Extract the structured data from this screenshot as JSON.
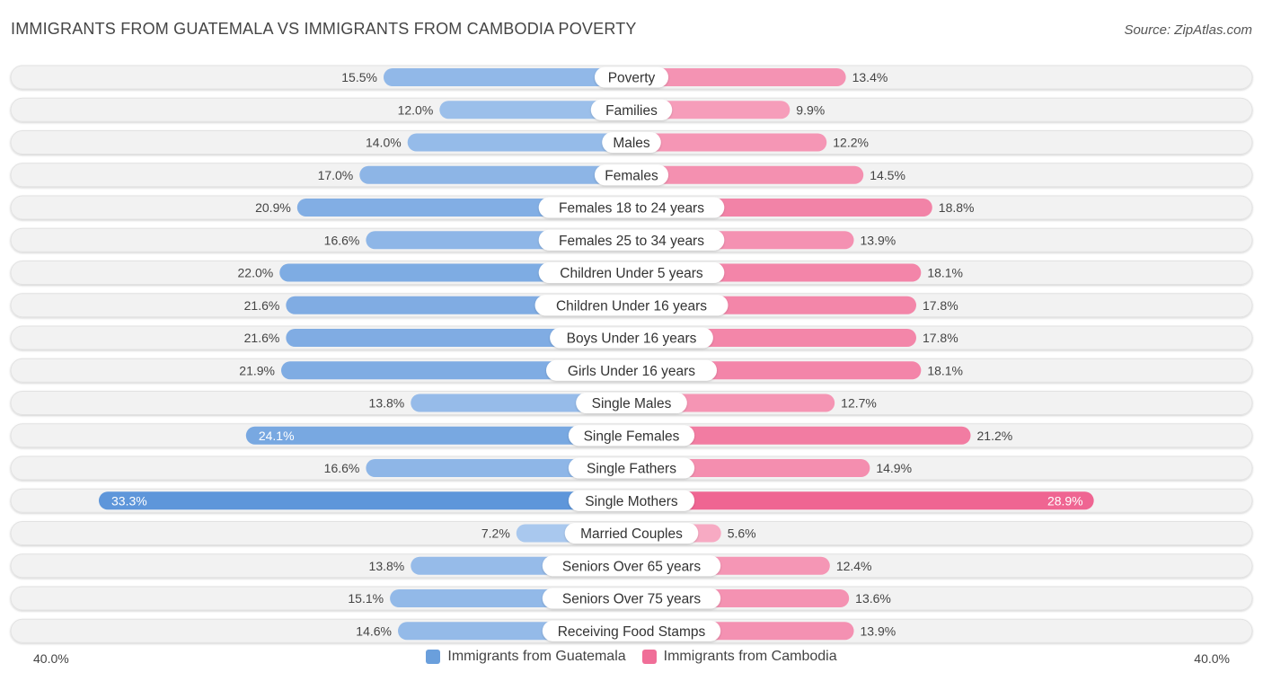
{
  "title": "IMMIGRANTS FROM GUATEMALA VS IMMIGRANTS FROM CAMBODIA POVERTY",
  "source": "Source: ZipAtlas.com",
  "colors": {
    "left_base": "#6a9fdc",
    "right_base": "#f06e98",
    "track": "#f1f1f1"
  },
  "chart_data": {
    "type": "bar",
    "orientation": "horizontal-diverging",
    "categories": [
      "Poverty",
      "Families",
      "Males",
      "Females",
      "Females 18 to 24 years",
      "Females 25 to 34 years",
      "Children Under 5 years",
      "Children Under 16 years",
      "Boys Under 16 years",
      "Girls Under 16 years",
      "Single Males",
      "Single Females",
      "Single Fathers",
      "Single Mothers",
      "Married Couples",
      "Seniors Over 65 years",
      "Seniors Over 75 years",
      "Receiving Food Stamps"
    ],
    "series": [
      {
        "name": "Immigrants from Guatemala",
        "side": "left",
        "values": [
          15.5,
          12.0,
          14.0,
          17.0,
          20.9,
          16.6,
          22.0,
          21.6,
          21.6,
          21.9,
          13.8,
          24.1,
          16.6,
          33.3,
          7.2,
          13.8,
          15.1,
          14.6
        ],
        "labels": [
          "15.5%",
          "12.0%",
          "14.0%",
          "17.0%",
          "20.9%",
          "16.6%",
          "22.0%",
          "21.6%",
          "21.6%",
          "21.9%",
          "13.8%",
          "24.1%",
          "16.6%",
          "33.3%",
          "7.2%",
          "13.8%",
          "15.1%",
          "14.6%"
        ]
      },
      {
        "name": "Immigrants from Cambodia",
        "side": "right",
        "values": [
          13.4,
          9.9,
          12.2,
          14.5,
          18.8,
          13.9,
          18.1,
          17.8,
          17.8,
          18.1,
          12.7,
          21.2,
          14.9,
          28.9,
          5.6,
          12.4,
          13.6,
          13.9
        ],
        "labels": [
          "13.4%",
          "9.9%",
          "12.2%",
          "14.5%",
          "18.8%",
          "13.9%",
          "18.1%",
          "17.8%",
          "17.8%",
          "18.1%",
          "12.7%",
          "21.2%",
          "14.9%",
          "28.9%",
          "5.6%",
          "12.4%",
          "13.6%",
          "13.9%"
        ]
      }
    ],
    "xlim": [
      0,
      40
    ],
    "axis_left_label": "40.0%",
    "axis_right_label": "40.0%",
    "legend_position": "bottom-center"
  }
}
